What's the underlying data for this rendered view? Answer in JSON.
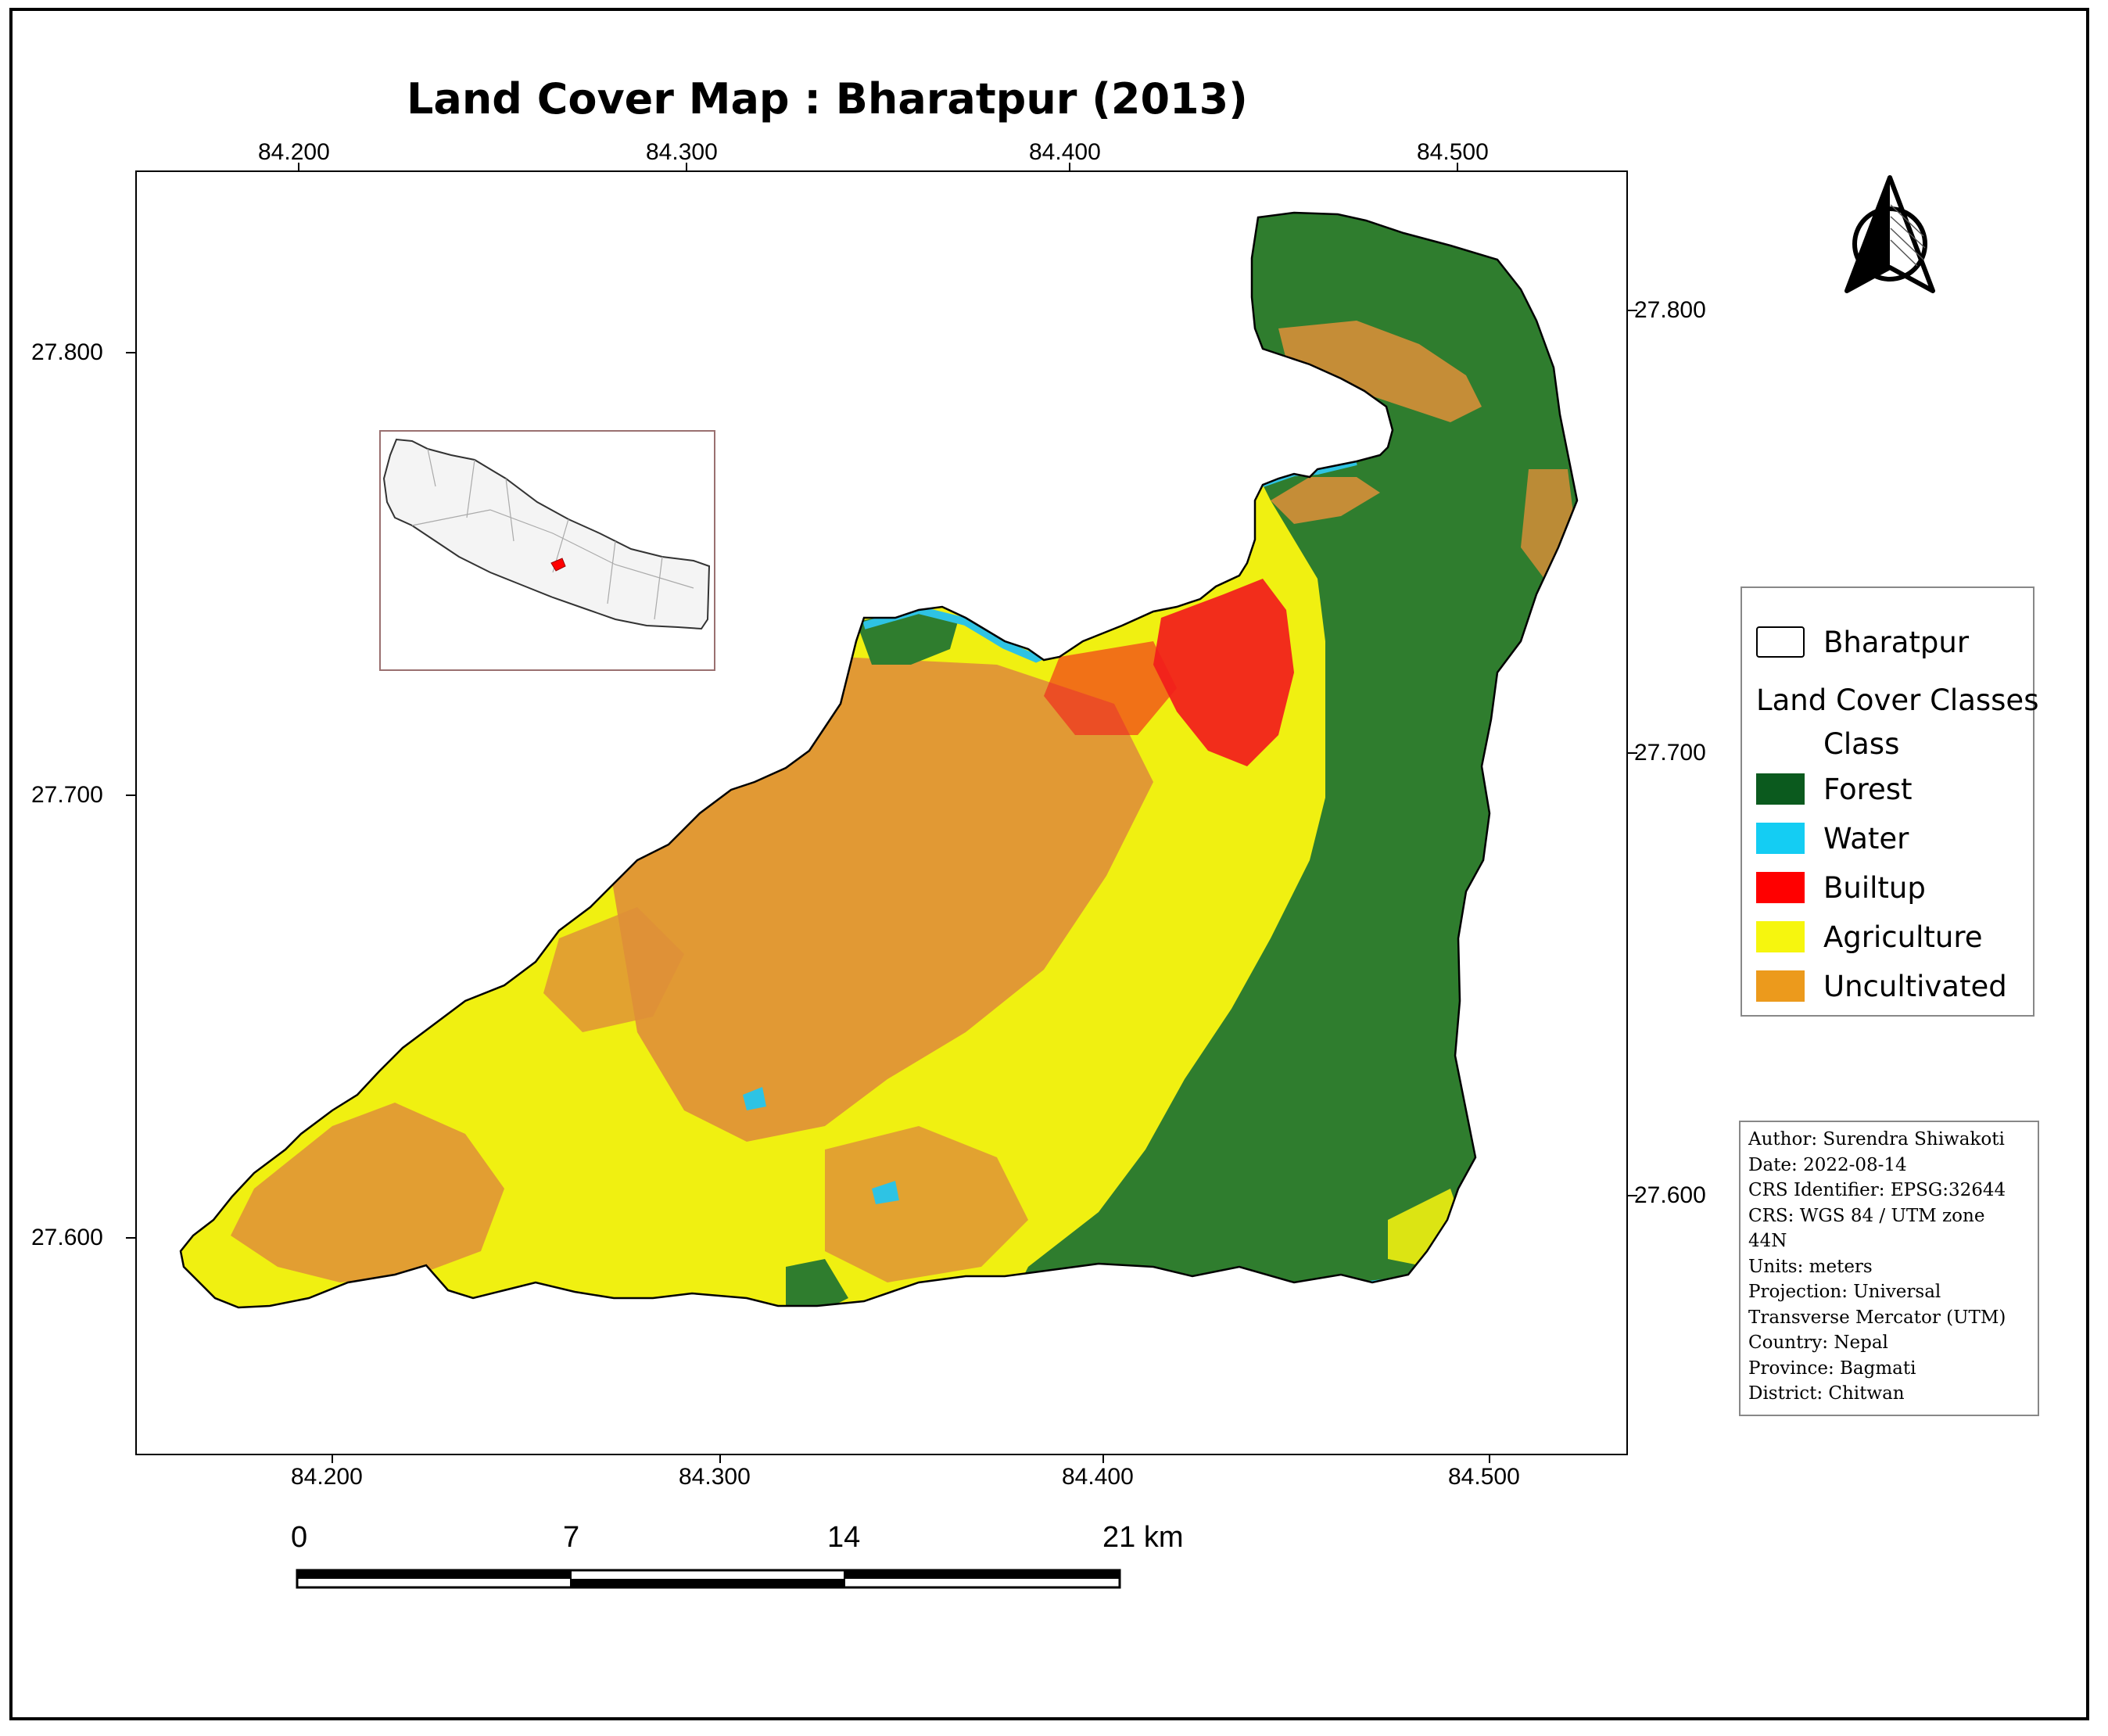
{
  "title": "Land Cover Map : Bharatpur (2013)",
  "axes": {
    "top_ticks": [
      "84.200",
      "84.300",
      "84.400",
      "84.500"
    ],
    "bottom_ticks": [
      "84.200",
      "84.300",
      "84.400",
      "84.500"
    ],
    "left_ticks": [
      "27.800",
      "27.700",
      "27.600"
    ],
    "right_ticks": [
      "27.800",
      "27.700",
      "27.600"
    ]
  },
  "legend": {
    "boundary_label": "Bharatpur",
    "heading": "Land Cover Classes",
    "subheading": "Class",
    "classes": [
      {
        "label": "Forest",
        "color": "#0b5a1e"
      },
      {
        "label": "Water",
        "color": "#14cdf3"
      },
      {
        "label": "Builtup",
        "color": "#ff0000"
      },
      {
        "label": "Agriculture",
        "color": "#f6f60e"
      },
      {
        "label": "Uncultivated",
        "color": "#ec9a1c"
      }
    ]
  },
  "metadata": {
    "lines": [
      "Author: Surendra Shiwakoti",
      "Date: 2022-08-14",
      "CRS Identifier: EPSG:32644",
      "CRS: WGS 84 / UTM zone",
      "44N",
      "Units: meters",
      "Projection: Universal",
      "Transverse Mercator (UTM)",
      "Country: Nepal",
      "Province: Bagmati",
      "District: Chitwan"
    ]
  },
  "scale_bar": {
    "labels": [
      "0",
      "7",
      "14",
      "21 km"
    ]
  },
  "north_arrow": {
    "icon": "north-arrow-icon"
  },
  "map_colors": {
    "forest": "#2f7d2e",
    "water": "#2ec3e4",
    "builtup": "#f21c1c",
    "agriculture": "#f0f011",
    "uncultivated": "#df8f38"
  }
}
